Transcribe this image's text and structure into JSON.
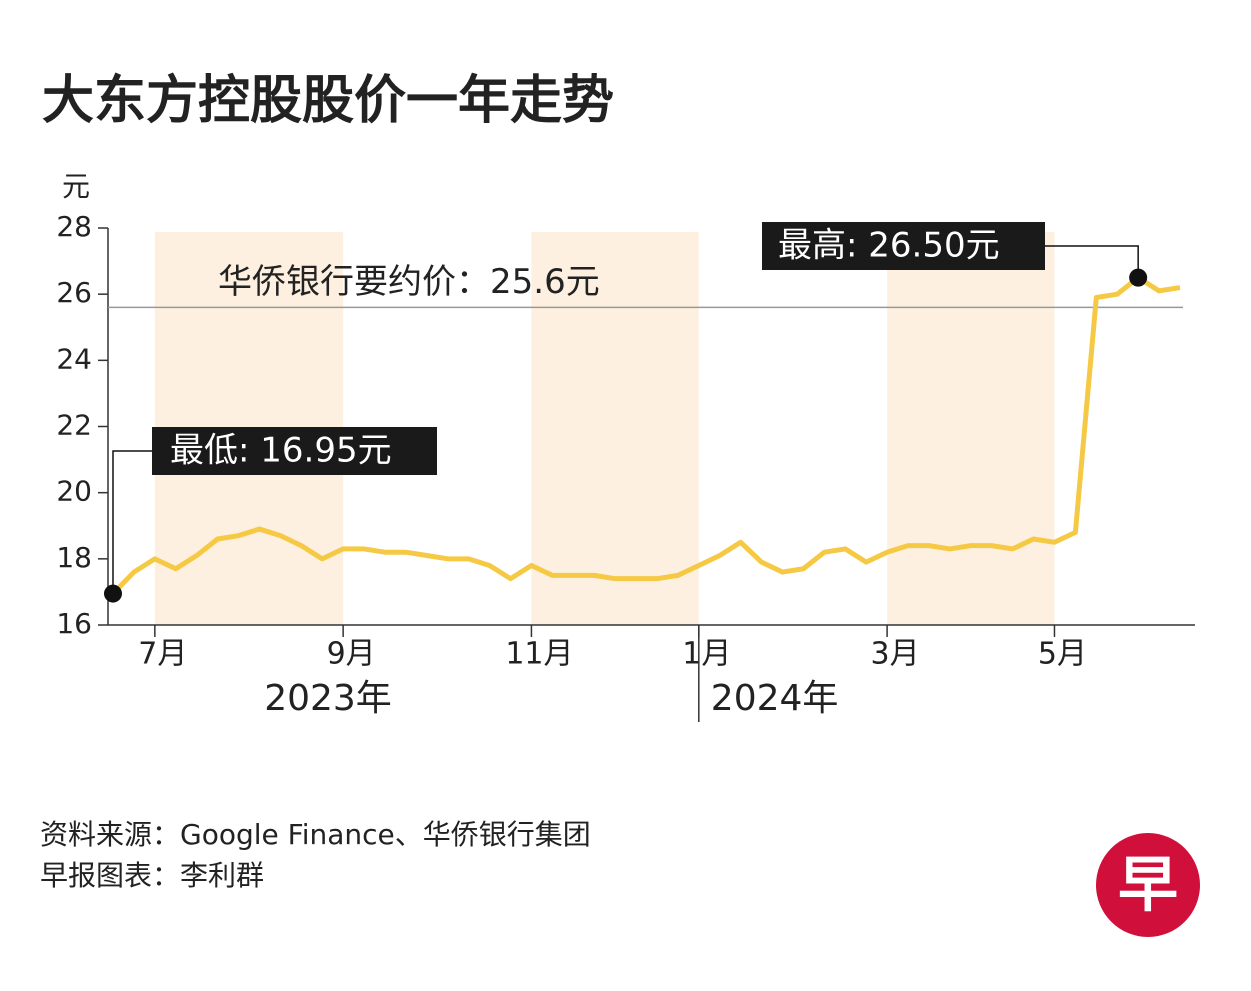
{
  "chart_data": {
    "type": "line",
    "title": "大东方控股股价一年走势",
    "y_label": "元",
    "categories": [
      null,
      null,
      "7月",
      null,
      null,
      null,
      null,
      null,
      null,
      null,
      null,
      "9月",
      null,
      null,
      null,
      null,
      null,
      null,
      null,
      null,
      "11月",
      null,
      null,
      null,
      null,
      null,
      null,
      null,
      "1月",
      null,
      null,
      null,
      null,
      null,
      null,
      null,
      null,
      "3月",
      null,
      null,
      null,
      null,
      null,
      null,
      null,
      "5月",
      null,
      null,
      null,
      null,
      null,
      null
    ],
    "x_group_labels": [
      "2023年",
      "2024年"
    ],
    "series": [
      {
        "name": "大东方控股",
        "color": "#f6c945",
        "values": [
          16.95,
          17.6,
          18.0,
          17.7,
          18.1,
          18.6,
          18.7,
          18.9,
          18.7,
          18.4,
          18.0,
          18.3,
          18.3,
          18.2,
          18.2,
          18.1,
          18.0,
          18.0,
          17.8,
          17.4,
          17.8,
          17.5,
          17.5,
          17.5,
          17.4,
          17.4,
          17.4,
          17.5,
          17.8,
          18.1,
          18.5,
          17.9,
          17.6,
          17.7,
          18.2,
          18.3,
          17.9,
          18.2,
          18.4,
          18.4,
          18.3,
          18.4,
          18.4,
          18.3,
          18.6,
          18.5,
          18.8,
          25.9,
          26.0,
          26.5,
          26.1,
          26.2
        ]
      }
    ],
    "ylim": [
      16,
      28
    ],
    "yticks": [
      16,
      18,
      20,
      22,
      24,
      26,
      28
    ],
    "reference": {
      "label": "华侨银行要约价：25.6元",
      "value": 25.6
    },
    "low_label": "最低: 16.95元",
    "high_label": "最高: 26.50元",
    "source": "资料来源：Google Finance、华侨银行集团",
    "credit": "早报图表：李利群",
    "logo": "早"
  }
}
